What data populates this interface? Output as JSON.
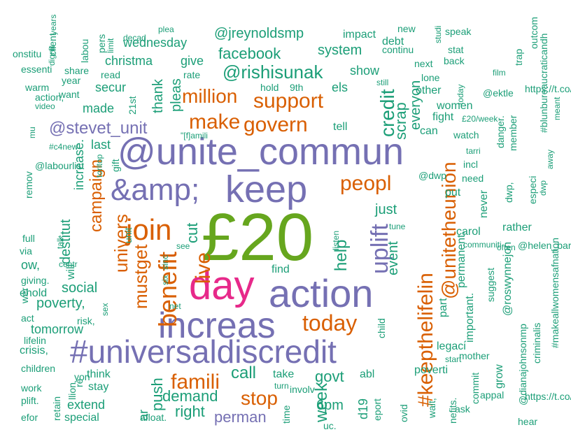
{
  "palette": {
    "teal": "#1b9e77",
    "orange": "#d95f02",
    "purple": "#7570b3",
    "pink": "#e7298a",
    "green": "#66a61e"
  },
  "words": [
    {
      "text": "£20",
      "color": "green"
    },
    {
      "text": "day",
      "color": "pink"
    },
    {
      "text": "@unite_commun",
      "color": "purple"
    },
    {
      "text": "&amp;",
      "color": "purple"
    },
    {
      "text": "keep",
      "color": "purple"
    },
    {
      "text": "action",
      "color": "purple"
    },
    {
      "text": "increas",
      "color": "purple"
    },
    {
      "text": "#universaldiscredit",
      "color": "purple"
    },
    {
      "text": "uplift",
      "color": "purple"
    },
    {
      "text": "join",
      "color": "orange"
    },
    {
      "text": "live",
      "color": "orange"
    },
    {
      "text": "benefit",
      "color": "orange"
    },
    {
      "text": "peopl",
      "color": "orange"
    },
    {
      "text": "today",
      "color": "orange"
    },
    {
      "text": "famili",
      "color": "orange"
    },
    {
      "text": "stop",
      "color": "orange"
    },
    {
      "text": "#keepthelifelin",
      "color": "orange"
    },
    {
      "text": "@unitetheunion",
      "color": "orange"
    },
    {
      "text": "make",
      "color": "orange"
    },
    {
      "text": "govern",
      "color": "orange"
    },
    {
      "text": "support",
      "color": "orange"
    },
    {
      "text": "million",
      "color": "orange"
    },
    {
      "text": "campaign",
      "color": "orange"
    },
    {
      "text": "univers",
      "color": "orange"
    },
    {
      "text": "mustget",
      "color": "orange"
    },
    {
      "text": "@stevet_unit",
      "color": "purple"
    },
    {
      "text": "@rishisunak",
      "color": "teal"
    },
    {
      "text": "facebook",
      "color": "teal"
    },
    {
      "text": "@jreynoldsmp",
      "color": "teal"
    },
    {
      "text": "credit",
      "color": "teal"
    },
    {
      "text": "scrap",
      "color": "teal"
    },
    {
      "text": "everyon",
      "color": "teal"
    },
    {
      "text": "help",
      "color": "teal"
    },
    {
      "text": "call",
      "color": "teal"
    },
    {
      "text": "govt",
      "color": "teal"
    },
    {
      "text": "week",
      "color": "teal"
    },
    {
      "text": "demand",
      "color": "teal"
    },
    {
      "text": "right",
      "color": "teal"
    },
    {
      "text": "perman",
      "color": "purple"
    },
    {
      "text": "push",
      "color": "teal"
    },
    {
      "text": "cut",
      "color": "teal"
    },
    {
      "text": "social",
      "color": "teal"
    },
    {
      "text": "poverty,",
      "color": "teal"
    },
    {
      "text": "tomorrow",
      "color": "teal"
    },
    {
      "text": "event",
      "color": "teal"
    },
    {
      "text": "just",
      "color": "teal"
    },
    {
      "text": "6pm",
      "color": "teal"
    },
    {
      "text": "system",
      "color": "teal"
    },
    {
      "text": "show",
      "color": "teal"
    },
    {
      "text": "give",
      "color": "teal"
    },
    {
      "text": "christma",
      "color": "teal"
    },
    {
      "text": "wednesday",
      "color": "teal"
    },
    {
      "text": "thank",
      "color": "teal"
    },
    {
      "text": "pleas",
      "color": "teal"
    },
    {
      "text": "made",
      "color": "teal"
    },
    {
      "text": "last",
      "color": "teal"
    },
    {
      "text": "secur",
      "color": "teal"
    },
    {
      "text": "els",
      "color": "teal"
    },
    {
      "text": "tell",
      "color": "teal"
    },
    {
      "text": "destitut",
      "color": "teal"
    },
    {
      "text": "increase.",
      "color": "teal"
    },
    {
      "text": "will",
      "color": "teal"
    },
    {
      "text": "extend",
      "color": "teal"
    },
    {
      "text": "special",
      "color": "teal"
    },
    {
      "text": "stay",
      "color": "teal"
    },
    {
      "text": "think",
      "color": "teal"
    },
    {
      "text": "take",
      "color": "teal"
    },
    {
      "text": "involv",
      "color": "teal"
    },
    {
      "text": "abl",
      "color": "teal"
    },
    {
      "text": "poverti",
      "color": "teal"
    },
    {
      "text": "legaci",
      "color": "teal"
    },
    {
      "text": "part",
      "color": "teal"
    },
    {
      "text": "permanent.",
      "color": "teal"
    },
    {
      "text": "important.",
      "color": "teal"
    },
    {
      "text": "rather",
      "color": "teal"
    },
    {
      "text": "carol",
      "color": "teal"
    },
    {
      "text": "put",
      "color": "teal"
    },
    {
      "text": "@dwp",
      "color": "teal"
    },
    {
      "text": "need",
      "color": "teal"
    },
    {
      "text": "never",
      "color": "teal"
    },
    {
      "text": "fight",
      "color": "teal"
    },
    {
      "text": "can",
      "color": "teal"
    },
    {
      "text": "watch",
      "color": "teal"
    },
    {
      "text": "women",
      "color": "teal"
    },
    {
      "text": "other",
      "color": "teal"
    },
    {
      "text": "impact",
      "color": "teal"
    },
    {
      "text": "debt",
      "color": "teal"
    },
    {
      "text": "continu",
      "color": "teal"
    },
    {
      "text": "next",
      "color": "teal"
    },
    {
      "text": "lone",
      "color": "teal"
    },
    {
      "text": "back",
      "color": "teal"
    },
    {
      "text": "stat",
      "color": "teal"
    },
    {
      "text": "speak",
      "color": "teal"
    },
    {
      "text": "new",
      "color": "teal"
    },
    {
      "text": "still",
      "color": "teal"
    },
    {
      "text": "hold",
      "color": "teal"
    },
    {
      "text": "9th",
      "color": "teal"
    },
    {
      "text": "rate",
      "color": "teal"
    },
    {
      "text": "read",
      "color": "teal"
    },
    {
      "text": "share",
      "color": "teal"
    },
    {
      "text": "year",
      "color": "teal"
    },
    {
      "text": "want",
      "color": "teal"
    },
    {
      "text": "warm",
      "color": "teal"
    },
    {
      "text": "action,",
      "color": "teal"
    },
    {
      "text": "video",
      "color": "teal"
    },
    {
      "text": "essenti",
      "color": "teal"
    },
    {
      "text": "onstitu",
      "color": "teal"
    },
    {
      "text": "client",
      "color": "teal"
    },
    {
      "text": "labou",
      "color": "teal"
    },
    {
      "text": "pers",
      "color": "teal"
    },
    {
      "text": "limit",
      "color": "teal"
    },
    {
      "text": "decad",
      "color": "teal"
    },
    {
      "text": "plea",
      "color": "teal"
    },
    {
      "text": "years",
      "color": "teal"
    },
    {
      "text": "dignit",
      "color": "teal"
    },
    {
      "text": "21st",
      "color": "teal"
    },
    {
      "text": "\"[f]amili",
      "color": "teal"
    },
    {
      "text": "find",
      "color": "teal"
    },
    {
      "text": "see",
      "color": "teal"
    },
    {
      "text": "net",
      "color": "teal"
    },
    {
      "text": "six",
      "color": "teal"
    },
    {
      "text": "sinc",
      "color": "teal"
    },
    {
      "text": "unit",
      "color": "teal"
    },
    {
      "text": "gift",
      "color": "teal"
    },
    {
      "text": "toritop",
      "color": "teal"
    },
    {
      "text": "listen",
      "color": "teal"
    },
    {
      "text": "tune",
      "color": "teal"
    },
    {
      "text": "child",
      "color": "teal"
    },
    {
      "text": "d19",
      "color": "teal"
    },
    {
      "text": "eport",
      "color": "teal"
    },
    {
      "text": "ovid",
      "color": "teal"
    },
    {
      "text": "wait,",
      "color": "teal"
    },
    {
      "text": "nefits.",
      "color": "teal"
    },
    {
      "text": "commit",
      "color": "teal"
    },
    {
      "text": "mother",
      "color": "teal"
    },
    {
      "text": "start",
      "color": "teal"
    },
    {
      "text": "ask",
      "color": "teal"
    },
    {
      "text": "appal",
      "color": "teal"
    },
    {
      "text": "grow",
      "color": "teal"
    },
    {
      "text": "@roswynnejon",
      "color": "teal"
    },
    {
      "text": "suggest",
      "color": "teal"
    },
    {
      "text": "communiti",
      "color": "teal"
    },
    {
      "text": "often",
      "color": "teal"
    },
    {
      "text": "dwp,",
      "color": "teal"
    },
    {
      "text": "especi",
      "color": "teal"
    },
    {
      "text": "@helen_barnard",
      "color": "teal"
    },
    {
      "text": "dwp",
      "color": "teal"
    },
    {
      "text": "criminalis",
      "color": "teal"
    },
    {
      "text": "@dianajohnsonmp",
      "color": "teal"
    },
    {
      "text": "#makeallwomensafnation",
      "color": "teal"
    },
    {
      "text": "https://t.co/tbcnrqvpvu",
      "color": "teal"
    },
    {
      "text": "hear",
      "color": "teal"
    },
    {
      "text": "away",
      "color": "teal"
    },
    {
      "text": "#blunbureaucraticandh",
      "color": "teal"
    },
    {
      "text": "meant",
      "color": "teal"
    },
    {
      "text": "https://t.co/bf",
      "color": "teal"
    },
    {
      "text": "film",
      "color": "teal"
    },
    {
      "text": "trap",
      "color": "teal"
    },
    {
      "text": "outcom",
      "color": "teal"
    },
    {
      "text": "@ektle",
      "color": "teal"
    },
    {
      "text": "danger.",
      "color": "teal"
    },
    {
      "text": "member",
      "color": "teal"
    },
    {
      "text": "£20/week",
      "color": "teal"
    },
    {
      "text": "tarri",
      "color": "teal"
    },
    {
      "text": "incl",
      "color": "teal"
    },
    {
      "text": "today",
      "color": "teal"
    },
    {
      "text": "studi",
      "color": "teal"
    },
    {
      "text": "mu",
      "color": "teal"
    },
    {
      "text": "remov",
      "color": "teal"
    },
    {
      "text": "@labourlist",
      "color": "teal"
    },
    {
      "text": "#c4new",
      "color": "teal"
    },
    {
      "text": "full",
      "color": "teal"
    },
    {
      "text": "via",
      "color": "teal"
    },
    {
      "text": "ow,",
      "color": "teal"
    },
    {
      "text": "giving.",
      "color": "teal"
    },
    {
      "text": "ehold",
      "color": "teal"
    },
    {
      "text": "wer",
      "color": "teal"
    },
    {
      "text": "act",
      "color": "teal"
    },
    {
      "text": "lifelin",
      "color": "teal"
    },
    {
      "text": "crisis,",
      "color": "teal"
    },
    {
      "text": "children",
      "color": "teal"
    },
    {
      "text": "work",
      "color": "teal"
    },
    {
      "text": "plift.",
      "color": "teal"
    },
    {
      "text": "efor",
      "color": "teal"
    },
    {
      "text": "llion",
      "color": "teal"
    },
    {
      "text": "retain",
      "color": "teal"
    },
    {
      "text": "yon",
      "color": "teal"
    },
    {
      "text": "re",
      "color": "teal"
    },
    {
      "text": "ar",
      "color": "teal"
    },
    {
      "text": "afloat.",
      "color": "teal"
    },
    {
      "text": "risk,",
      "color": "teal"
    },
    {
      "text": "sex",
      "color": "teal"
    },
    {
      "text": "talk",
      "color": "teal"
    },
    {
      "text": "centr",
      "color": "teal"
    },
    {
      "text": "turn",
      "color": "teal"
    },
    {
      "text": "uc.",
      "color": "teal"
    },
    {
      "text": "time",
      "color": "teal"
    },
    {
      "text": "ol",
      "color": "teal"
    }
  ]
}
